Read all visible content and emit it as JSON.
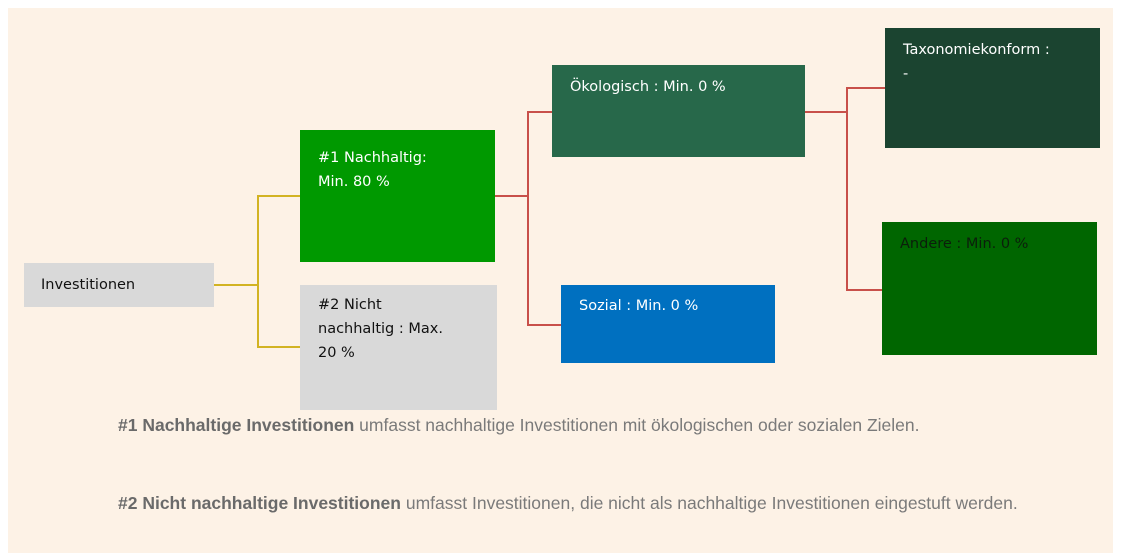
{
  "nodes": [
    {
      "label": [
        "Investitionen"
      ]
    },
    {
      "label": [
        "#1 Nachhaltig:",
        "Min. 80 %"
      ]
    },
    {
      "label": [
        "#2 Nicht",
        "nachhaltig : Max.",
        "20 %"
      ]
    },
    {
      "label": [
        "Ökologisch : Min. 0 %"
      ]
    },
    {
      "label": [
        "Sozial : Min. 0 %"
      ]
    },
    {
      "label": [
        "Taxonomiekonform :",
        "-"
      ]
    },
    {
      "label": [
        "Andere : Min. 0 %"
      ]
    }
  ],
  "notes": [
    {
      "bold": "#1 Nachhaltige Investitionen",
      "text": " umfasst nachhaltige Investitionen mit ökologischen oder sozialen Zielen."
    },
    {
      "bold": "#2 Nicht nachhaltige Investitionen",
      "text": " umfasst Investitionen, die nicht als nachhaltige Investitionen eingestuft werden."
    }
  ]
}
